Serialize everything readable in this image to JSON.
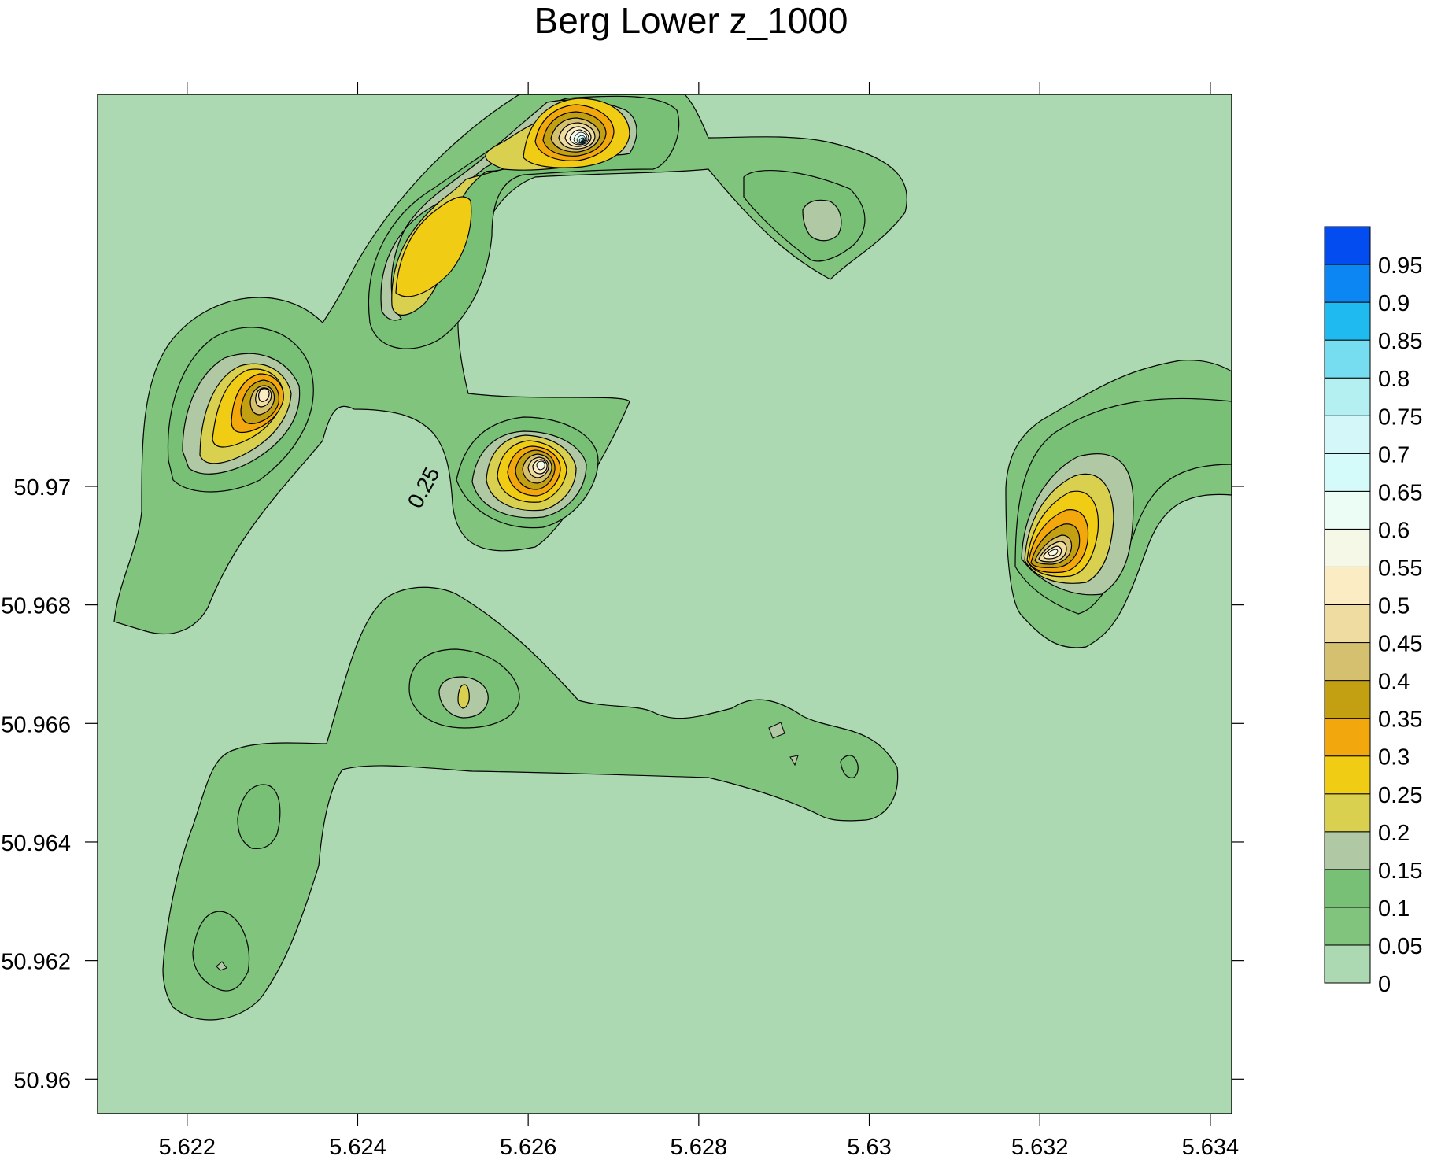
{
  "chart_data": {
    "type": "contour",
    "title": "Berg Lower z_1000",
    "xlabel": "",
    "ylabel": "",
    "xlim": [
      5.62095,
      5.63425
    ],
    "ylim": [
      50.95942,
      50.97661
    ],
    "x_ticks": [
      {
        "value": 5.622,
        "label": "5.622"
      },
      {
        "value": 5.624,
        "label": "5.624"
      },
      {
        "value": 5.626,
        "label": "5.626"
      },
      {
        "value": 5.628,
        "label": "5.628"
      },
      {
        "value": 5.63,
        "label": "5.63"
      },
      {
        "value": 5.632,
        "label": "5.632"
      },
      {
        "value": 5.634,
        "label": "5.634"
      }
    ],
    "y_ticks": [
      {
        "value": 50.96,
        "label": "50.96"
      },
      {
        "value": 50.962,
        "label": "50.962"
      },
      {
        "value": 50.964,
        "label": "50.964"
      },
      {
        "value": 50.966,
        "label": "50.966"
      },
      {
        "value": 50.968,
        "label": "50.968"
      },
      {
        "value": 50.97,
        "label": "50.97"
      }
    ],
    "grid": false,
    "legend_position": "right",
    "levels": [
      {
        "label": "0",
        "color": "#acd9b1"
      },
      {
        "label": "0.05",
        "color": "#80c47d"
      },
      {
        "label": "0.1",
        "color": "#78c076"
      },
      {
        "label": "0.15",
        "color": "#b0c9a4"
      },
      {
        "label": "0.2",
        "color": "#d9d050"
      },
      {
        "label": "0.25",
        "color": "#f0cc14"
      },
      {
        "label": "0.3",
        "color": "#f2a70c"
      },
      {
        "label": "0.35",
        "color": "#c2a012"
      },
      {
        "label": "0.4",
        "color": "#d5c070"
      },
      {
        "label": "0.45",
        "color": "#efdca1"
      },
      {
        "label": "0.5",
        "color": "#fcecc3"
      },
      {
        "label": "0.55",
        "color": "#f5f8e6"
      },
      {
        "label": "0.6",
        "color": "#ebfdf4"
      },
      {
        "label": "0.65",
        "color": "#d5fafa"
      },
      {
        "label": "0.7",
        "color": "#d4f7fa"
      },
      {
        "label": "0.75",
        "color": "#b4eff2"
      },
      {
        "label": "0.8",
        "color": "#76dcf0"
      },
      {
        "label": "0.85",
        "color": "#1fbaf0"
      },
      {
        "label": "0.9",
        "color": "#0b86f3"
      },
      {
        "label": "0.95",
        "color": "#024cf0"
      }
    ],
    "contour_labels": [
      {
        "text": "0.25",
        "x": 5.62485,
        "y": 50.96992
      }
    ],
    "peaks": [
      {
        "x": 5.62685,
        "y": 50.97105,
        "value": 0.97
      },
      {
        "x": 5.62625,
        "y": 50.96745,
        "value": 0.57
      },
      {
        "x": 5.6229,
        "y": 50.96805,
        "value": 0.53
      },
      {
        "x": 5.6321,
        "y": 50.96625,
        "value": 0.54
      },
      {
        "x": 5.6253,
        "y": 50.96445,
        "value": 0.21
      },
      {
        "x": 5.6294,
        "y": 50.97015,
        "value": 0.17
      },
      {
        "x": 5.6224,
        "y": 50.96145,
        "value": 0.16
      }
    ]
  }
}
